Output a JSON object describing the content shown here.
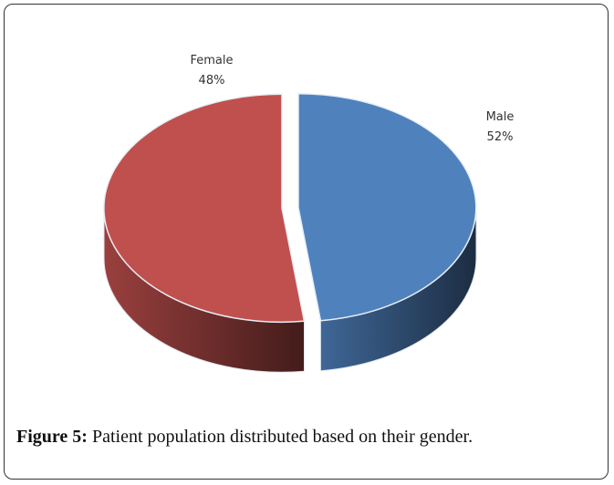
{
  "chart_data": {
    "type": "pie3d",
    "categories": [
      "Female",
      "Male"
    ],
    "values": [
      48,
      52
    ],
    "value_labels": [
      "48%",
      "52%"
    ],
    "colors": [
      "#4f81bd",
      "#c0504d"
    ]
  },
  "caption": {
    "label": "Figure 5:",
    "text": "Patient population distributed based on their gender."
  }
}
